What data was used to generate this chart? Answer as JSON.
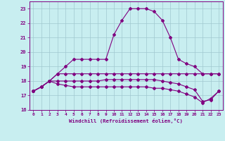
{
  "xlabel": "Windchill (Refroidissement éolien,°C)",
  "background_color": "#c8eef0",
  "grid_color": "#a0c8d0",
  "line_color": "#800080",
  "x_hours": [
    0,
    1,
    2,
    3,
    4,
    5,
    6,
    7,
    8,
    9,
    10,
    11,
    12,
    13,
    14,
    15,
    16,
    17,
    18,
    19,
    20,
    21,
    22,
    23
  ],
  "temp_line": [
    17.3,
    17.6,
    18.0,
    18.5,
    19.0,
    19.5,
    19.5,
    19.5,
    19.5,
    19.5,
    21.2,
    22.2,
    23.0,
    23.0,
    23.0,
    22.8,
    22.2,
    21.0,
    19.5,
    19.2,
    19.0,
    18.5,
    18.5,
    18.5
  ],
  "windchill_line1": [
    17.3,
    17.6,
    18.0,
    18.5,
    18.5,
    18.5,
    18.5,
    18.5,
    18.5,
    18.5,
    18.5,
    18.5,
    18.5,
    18.5,
    18.5,
    18.5,
    18.5,
    18.5,
    18.5,
    18.5,
    18.5,
    18.5,
    18.5,
    18.5
  ],
  "windchill_line2": [
    17.3,
    17.6,
    18.0,
    18.0,
    18.0,
    18.0,
    18.0,
    18.0,
    18.0,
    18.1,
    18.1,
    18.1,
    18.1,
    18.1,
    18.1,
    18.1,
    18.0,
    17.9,
    17.8,
    17.6,
    17.4,
    16.6,
    16.7,
    17.3
  ],
  "windchill_line3": [
    17.3,
    17.6,
    18.0,
    17.8,
    17.7,
    17.6,
    17.6,
    17.6,
    17.6,
    17.6,
    17.6,
    17.6,
    17.6,
    17.6,
    17.6,
    17.5,
    17.5,
    17.4,
    17.3,
    17.1,
    16.9,
    16.5,
    16.8,
    17.3
  ],
  "ylim": [
    16,
    23.5
  ],
  "xlim": [
    -0.5,
    23.5
  ],
  "yticks": [
    16,
    17,
    18,
    19,
    20,
    21,
    22,
    23
  ],
  "xticks": [
    0,
    1,
    2,
    3,
    4,
    5,
    6,
    7,
    8,
    9,
    10,
    11,
    12,
    13,
    14,
    15,
    16,
    17,
    18,
    19,
    20,
    21,
    22,
    23
  ]
}
